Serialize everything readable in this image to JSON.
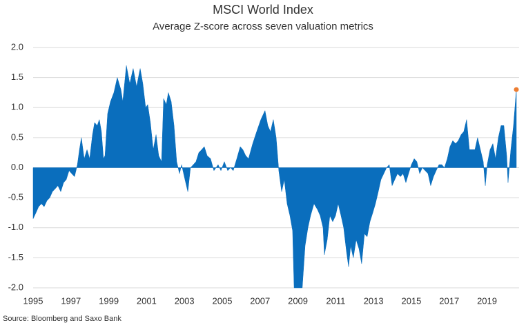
{
  "chart_data": {
    "type": "area",
    "title": "MSCI World Index",
    "subtitle": "Average Z-score across seven valuation metrics",
    "source": "Source: Bloomberg and Saxo Bank",
    "color": "#0a6ebd",
    "last_point_color": "#ed7d31",
    "grid": true,
    "xlim": [
      1995,
      2020.55
    ],
    "xticks": [
      1995,
      1997,
      1999,
      2001,
      2003,
      2005,
      2007,
      2009,
      2011,
      2013,
      2015,
      2017,
      2019
    ],
    "ylim": [
      -2,
      2
    ],
    "yticks": [
      {
        "value": 2,
        "label": "2.0"
      },
      1.5,
      {
        "value": 1,
        "label": "1.0"
      },
      0.5,
      {
        "value": 0,
        "label": "0.0"
      },
      -0.5,
      {
        "value": -1,
        "label": "-1.0"
      },
      -1.5,
      {
        "value": -2,
        "label": "-2.0"
      }
    ],
    "x": [
      1995.0,
      1995.15,
      1995.29,
      1995.44,
      1995.58,
      1995.73,
      1995.88,
      1996.02,
      1996.17,
      1996.31,
      1996.46,
      1996.61,
      1996.75,
      1996.9,
      1997.04,
      1997.19,
      1997.34,
      1997.45,
      1997.55,
      1997.7,
      1997.85,
      1997.99,
      1998.14,
      1998.25,
      1998.39,
      1998.5,
      1998.61,
      1998.72,
      1998.8,
      1998.94,
      1999.09,
      1999.27,
      1999.45,
      1999.64,
      1999.74,
      1999.93,
      2000.11,
      2000.29,
      2000.47,
      2000.66,
      2000.8,
      2000.95,
      2001.06,
      2001.2,
      2001.35,
      2001.5,
      2001.64,
      2001.79,
      2001.9,
      2002.04,
      2002.15,
      2002.3,
      2002.45,
      2002.59,
      2002.74,
      2002.85,
      2003.03,
      2003.18,
      2003.32,
      2003.47,
      2003.61,
      2003.76,
      2003.91,
      2004.05,
      2004.2,
      2004.38,
      2004.56,
      2004.78,
      2004.93,
      2005.11,
      2005.29,
      2005.44,
      2005.58,
      2005.77,
      2005.95,
      2006.09,
      2006.24,
      2006.39,
      2006.61,
      2006.82,
      2007.04,
      2007.26,
      2007.41,
      2007.55,
      2007.7,
      2007.85,
      2007.99,
      2008.14,
      2008.28,
      2008.43,
      2008.58,
      2008.72,
      2008.8,
      2009.01,
      2009.23,
      2009.38,
      2009.53,
      2009.67,
      2009.85,
      2010.04,
      2010.18,
      2010.33,
      2010.4,
      2010.55,
      2010.69,
      2010.84,
      2010.99,
      2011.13,
      2011.28,
      2011.42,
      2011.57,
      2011.68,
      2011.79,
      2011.93,
      2012.08,
      2012.23,
      2012.37,
      2012.52,
      2012.66,
      2012.81,
      2012.96,
      2013.1,
      2013.25,
      2013.39,
      2013.54,
      2013.69,
      2013.83,
      2013.98,
      2014.12,
      2014.27,
      2014.42,
      2014.56,
      2014.71,
      2014.85,
      2015.0,
      2015.15,
      2015.29,
      2015.44,
      2015.58,
      2015.73,
      2015.88,
      2016.02,
      2016.17,
      2016.31,
      2016.46,
      2016.61,
      2016.75,
      2016.9,
      2017.04,
      2017.19,
      2017.34,
      2017.48,
      2017.63,
      2017.77,
      2017.92,
      2018.07,
      2018.21,
      2018.36,
      2018.5,
      2018.65,
      2018.8,
      2018.91,
      2019.01,
      2019.16,
      2019.31,
      2019.45,
      2019.6,
      2019.74,
      2019.89,
      2020.04,
      2020.11,
      2020.26,
      2020.4,
      2020.55
    ],
    "values": [
      -0.85,
      -0.75,
      -0.65,
      -0.6,
      -0.65,
      -0.55,
      -0.5,
      -0.4,
      -0.35,
      -0.3,
      -0.4,
      -0.25,
      -0.2,
      -0.05,
      -0.1,
      -0.15,
      0.05,
      0.3,
      0.5,
      0.15,
      0.3,
      0.15,
      0.55,
      0.75,
      0.7,
      0.8,
      0.6,
      0.15,
      0.2,
      0.9,
      1.1,
      1.25,
      1.5,
      1.3,
      1.1,
      1.7,
      1.4,
      1.65,
      1.35,
      1.65,
      1.4,
      1.0,
      1.05,
      0.75,
      0.3,
      0.55,
      0.2,
      0.1,
      1.15,
      1.05,
      1.25,
      1.1,
      0.7,
      0.1,
      -0.1,
      0.05,
      -0.2,
      -0.4,
      0.0,
      0.05,
      0.1,
      0.25,
      0.3,
      0.35,
      0.2,
      0.15,
      -0.05,
      0.05,
      -0.05,
      0.1,
      -0.05,
      0.0,
      -0.05,
      0.15,
      0.35,
      0.3,
      0.2,
      0.15,
      0.4,
      0.6,
      0.8,
      0.95,
      0.7,
      0.6,
      0.8,
      0.5,
      -0.05,
      -0.4,
      -0.2,
      -0.6,
      -0.8,
      -1.05,
      -2.0,
      -2.0,
      -2.0,
      -1.3,
      -1.0,
      -0.8,
      -0.6,
      -0.7,
      -0.8,
      -1.0,
      -1.45,
      -1.2,
      -0.8,
      -0.9,
      -0.8,
      -0.6,
      -0.8,
      -1.0,
      -1.4,
      -1.65,
      -1.3,
      -1.5,
      -1.2,
      -1.35,
      -1.6,
      -1.1,
      -1.15,
      -0.9,
      -0.75,
      -0.6,
      -0.4,
      -0.2,
      -0.1,
      0.0,
      0.05,
      -0.3,
      -0.2,
      -0.1,
      -0.15,
      -0.1,
      -0.25,
      -0.1,
      0.05,
      0.15,
      0.1,
      -0.1,
      0.0,
      -0.05,
      -0.1,
      -0.3,
      -0.15,
      -0.05,
      0.05,
      0.05,
      0.0,
      0.15,
      0.35,
      0.45,
      0.4,
      0.45,
      0.55,
      0.6,
      0.8,
      0.3,
      0.3,
      0.3,
      0.5,
      0.3,
      0.1,
      -0.3,
      0.05,
      0.3,
      0.4,
      0.15,
      0.5,
      0.7,
      0.7,
      0.2,
      -0.25,
      0.3,
      0.7,
      1.3
    ]
  }
}
